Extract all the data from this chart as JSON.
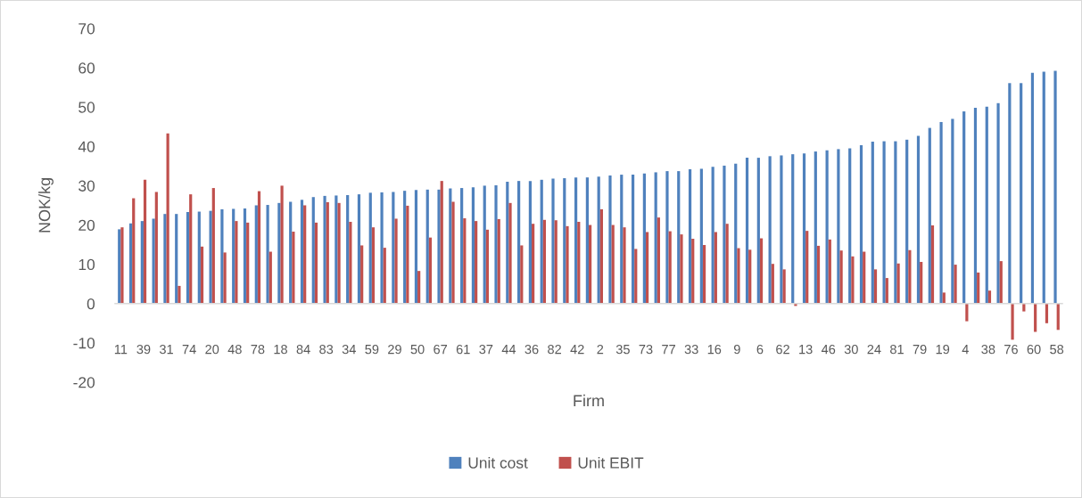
{
  "chart_data": {
    "type": "bar",
    "xlabel": "Firm",
    "ylabel": "NOK/kg",
    "categories": [
      "11",
      null,
      "39",
      null,
      "31",
      null,
      "74",
      null,
      "20",
      null,
      "48",
      null,
      "78",
      null,
      "18",
      null,
      "84",
      null,
      "83",
      null,
      "34",
      null,
      "59",
      null,
      "29",
      null,
      "50",
      null,
      "67",
      null,
      "61",
      null,
      "37",
      null,
      "44",
      null,
      "36",
      null,
      "82",
      null,
      "42",
      null,
      "2",
      null,
      "35",
      null,
      "73",
      null,
      "77",
      null,
      "33",
      null,
      "16",
      null,
      "9",
      null,
      "6",
      null,
      "62",
      null,
      "13",
      null,
      "46",
      null,
      "30",
      null,
      "24",
      null,
      "81",
      null,
      "79",
      null,
      "19",
      null,
      "4",
      null,
      "38",
      null,
      "76",
      null,
      "60",
      null,
      "58"
    ],
    "series": [
      {
        "name": "Unit cost",
        "color": "#4f81bd",
        "values": [
          18.9,
          20.4,
          21.0,
          21.6,
          22.8,
          22.8,
          23.3,
          23.4,
          23.6,
          24.0,
          24.1,
          24.2,
          25.0,
          25.1,
          25.6,
          25.9,
          26.4,
          27.1,
          27.4,
          27.5,
          27.6,
          27.8,
          28.2,
          28.3,
          28.4,
          28.7,
          28.9,
          29.0,
          29.0,
          29.3,
          29.4,
          29.6,
          30.0,
          30.1,
          31.0,
          31.2,
          31.2,
          31.5,
          31.8,
          31.9,
          32.1,
          32.1,
          32.3,
          32.6,
          32.8,
          32.8,
          33.1,
          33.4,
          33.7,
          33.7,
          34.2,
          34.3,
          34.8,
          35.1,
          35.6,
          37.1,
          37.1,
          37.5,
          37.7,
          38.0,
          38.2,
          38.7,
          39.0,
          39.3,
          39.5,
          40.3,
          41.2,
          41.3,
          41.3,
          41.7,
          42.7,
          44.7,
          46.2,
          47.0,
          48.9,
          49.8,
          50.1,
          51.0,
          56.1,
          56.1,
          58.7,
          59.0,
          59.2
        ]
      },
      {
        "name": "Unit EBIT",
        "color": "#c0504d",
        "values": [
          19.4,
          26.8,
          31.5,
          28.4,
          43.3,
          4.5,
          27.8,
          14.5,
          29.4,
          13.0,
          21.0,
          20.6,
          28.6,
          13.2,
          30.0,
          18.3,
          25.0,
          20.6,
          25.8,
          25.6,
          20.8,
          14.8,
          19.4,
          14.2,
          21.6,
          24.9,
          8.3,
          16.8,
          31.2,
          25.9,
          21.7,
          21.0,
          18.8,
          21.5,
          25.6,
          14.8,
          20.3,
          21.3,
          21.2,
          19.7,
          20.8,
          20.0,
          24.0,
          20.0,
          19.4,
          13.9,
          18.2,
          21.9,
          18.4,
          17.6,
          16.5,
          14.9,
          18.2,
          20.3,
          14.1,
          13.7,
          16.6,
          10.1,
          8.7,
          -0.6,
          18.5,
          14.7,
          16.3,
          13.5,
          12.0,
          13.2,
          8.7,
          6.5,
          10.2,
          13.6,
          10.6,
          19.9,
          2.8,
          9.9,
          -4.5,
          7.9,
          3.3,
          10.8,
          -9.2,
          -2.0,
          -7.2,
          -5.0,
          -6.7
        ]
      }
    ],
    "ylim": [
      -20,
      70
    ],
    "yticks": [
      -20,
      -10,
      0,
      10,
      20,
      30,
      40,
      50,
      60,
      70
    ],
    "legend": "bottom"
  }
}
